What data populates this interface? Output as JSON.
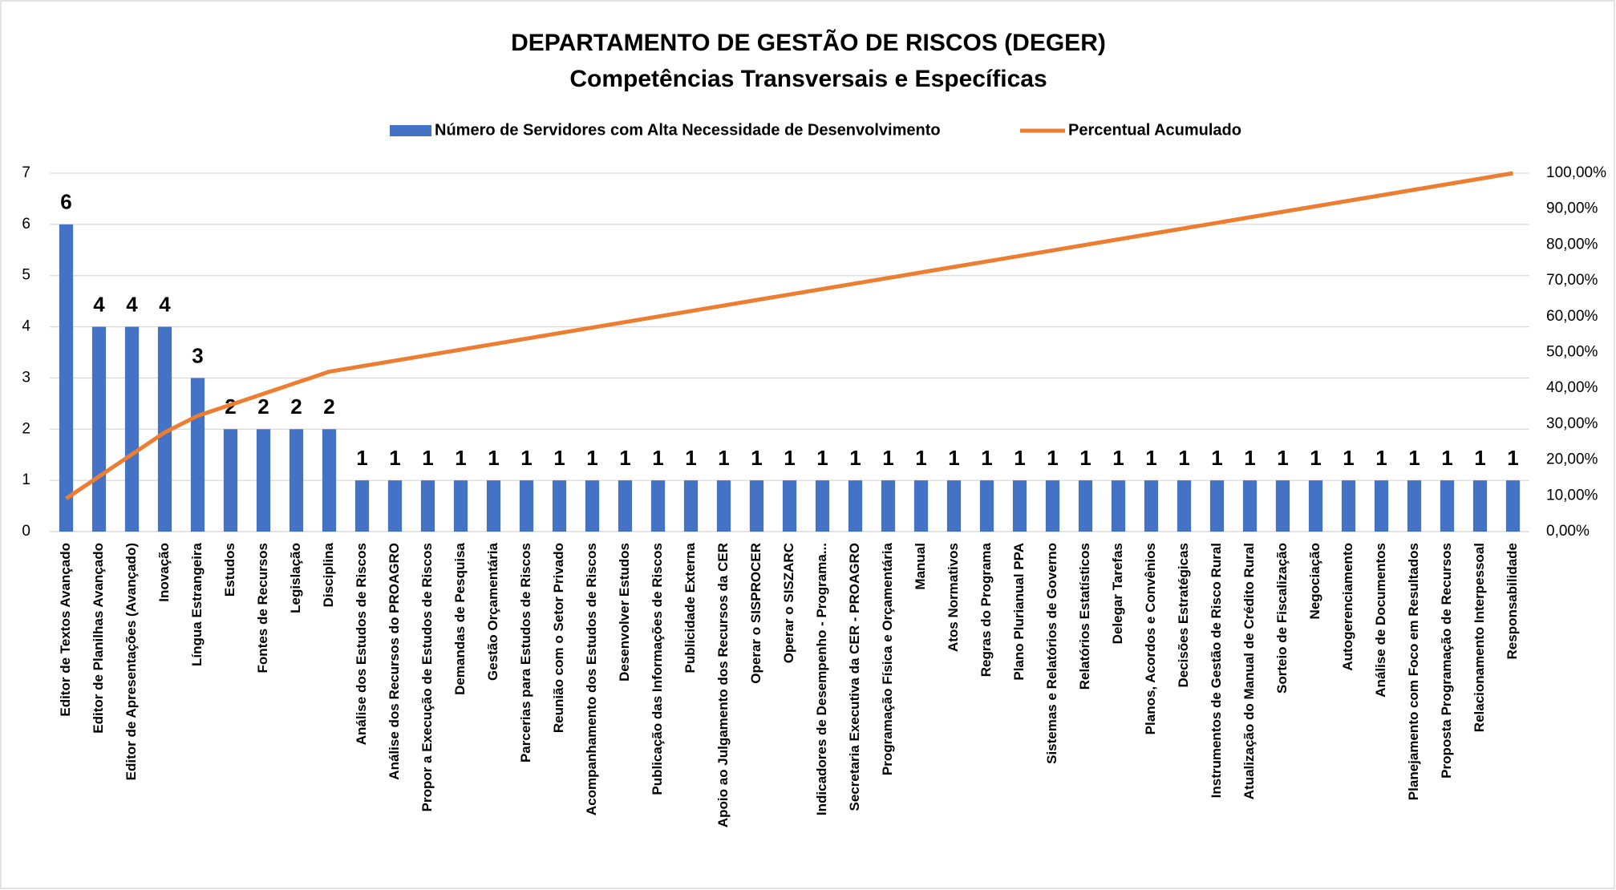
{
  "chart_data": {
    "type": "bar_line",
    "title": "DEPARTAMENTO DE GESTÃO DE RISCOS (DEGER)",
    "subtitle": "Competências Transversais e Específicas",
    "categories": [
      "Editor de Textos Avançado",
      "Editor de Planilhas Avançado",
      "Editor de Apresentações (Avançado)",
      "Inovação",
      "Língua Estrangeira",
      "Estudos",
      "Fontes de Recursos",
      "Legislação",
      "Disciplina",
      "Análise dos Estudos de Riscos",
      "Análise dos Recursos do PROAGRO",
      "Propor a Execução de Estudos de Riscos",
      "Demandas de Pesquisa",
      "Gestão Orçamentária",
      "Parcerias para Estudos de Riscos",
      "Reunião com o Setor Privado",
      "Acompanhamento dos Estudos de Riscos",
      "Desenvolver Estudos",
      "Publicação das Informações de Riscos",
      "Publicidade Externa",
      "Apoio ao Julgamento dos Recursos da CER",
      "Operar o SISPROCER",
      "Operar o SISZARC",
      "Indicadores de Desempenho - Programa...",
      "Secretaria Executiva da CER - PROAGRO",
      "Programação Física e Orçamentária",
      "Manual",
      "Atos Normativos",
      "Regras do Programa",
      "Plano Plurianual PPA",
      "Sistemas e Relatórios de Governo",
      "Relatórios Estatísticos",
      "Delegar Tarefas",
      "Planos, Acordos e Convênios",
      "Decisões Estratégicas",
      "Instrumentos de Gestão de Risco Rural",
      "Atualização do Manual de Crédito Rural",
      "Sorteio de Fiscalização",
      "Negociação",
      "Autogerenciamento",
      "Análise de Documentos",
      "Planejamento com Foco em Resultados",
      "Proposta Programação de Recursos",
      "Relacionamento Interpessoal",
      "Responsabilidade"
    ],
    "series": [
      {
        "name": "Número de Servidores com Alta Necessidade de Desenvolvimento",
        "color": "#4472c4",
        "type": "bar",
        "values": [
          6,
          4,
          4,
          4,
          3,
          2,
          2,
          2,
          2,
          1,
          1,
          1,
          1,
          1,
          1,
          1,
          1,
          1,
          1,
          1,
          1,
          1,
          1,
          1,
          1,
          1,
          1,
          1,
          1,
          1,
          1,
          1,
          1,
          1,
          1,
          1,
          1,
          1,
          1,
          1,
          1,
          1,
          1,
          1,
          1
        ]
      },
      {
        "name": "Percentual Acumulado",
        "color": "#ed7d31",
        "type": "line",
        "axis": "y2",
        "values": [
          9.23,
          15.38,
          21.54,
          27.69,
          32.31,
          35.38,
          38.46,
          41.54,
          44.62,
          46.15,
          47.69,
          49.23,
          50.77,
          52.31,
          53.85,
          55.38,
          56.92,
          58.46,
          60.0,
          61.54,
          63.08,
          64.62,
          66.15,
          67.69,
          69.23,
          70.77,
          72.31,
          73.85,
          75.38,
          76.92,
          78.46,
          80.0,
          81.54,
          83.08,
          84.62,
          86.15,
          87.69,
          89.23,
          90.77,
          92.31,
          93.85,
          95.38,
          96.92,
          98.46,
          100
        ]
      }
    ],
    "ylim": [
      0,
      7
    ],
    "yticks": [
      0,
      1,
      2,
      3,
      4,
      5,
      6,
      7
    ],
    "y2lim": [
      0,
      100
    ],
    "y2ticks": [
      {
        "value": 0,
        "label": "0,00%"
      },
      {
        "value": 10,
        "label": "10,00%"
      },
      {
        "value": 20,
        "label": "20,00%"
      },
      {
        "value": 30,
        "label": "30,00%"
      },
      {
        "value": 40,
        "label": "40,00%"
      },
      {
        "value": 50,
        "label": "50,00%"
      },
      {
        "value": 60,
        "label": "60,00%"
      },
      {
        "value": 70,
        "label": "70,00%"
      },
      {
        "value": 80,
        "label": "80,00%"
      },
      {
        "value": 90,
        "label": "90,00%"
      },
      {
        "value": 100,
        "label": "100,00%"
      }
    ],
    "grid": true,
    "legend": "top"
  }
}
